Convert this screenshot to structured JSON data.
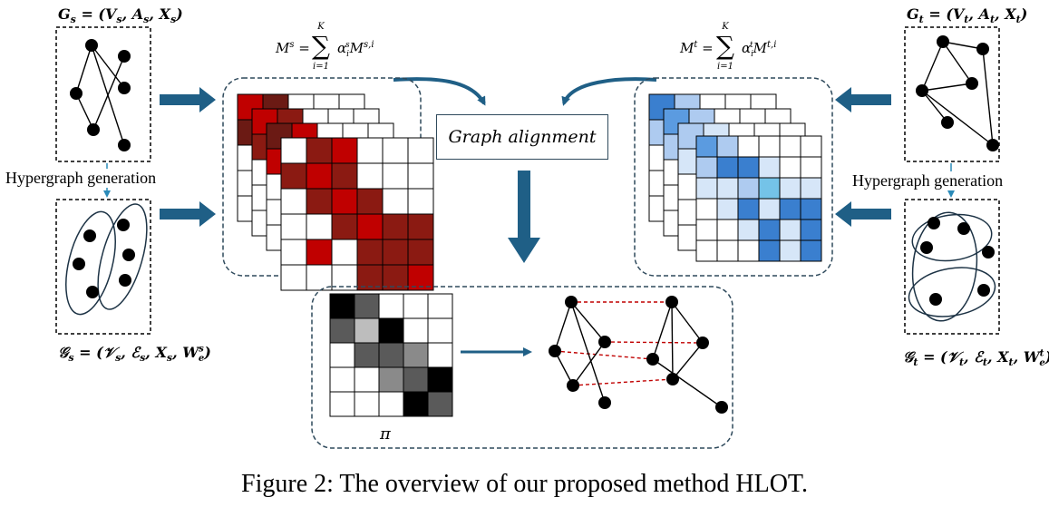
{
  "caption": "Figure 2: The overview of our proposed method HLOT.",
  "source_graph_label": "G_s = (V_s, A_s, X_s)",
  "target_graph_label": "G_t = (V_t, A_t, X_t)",
  "source_hypergraph_label": "𝒢_s = (𝒱_s, ℰ_s, X_s, W_e^s)",
  "target_hypergraph_label": "𝒢_t = (𝒱_t, ℰ_t, X_t, W_e^t)",
  "hypergraph_generation_left": "Hypergraph generation",
  "hypergraph_generation_right": "Hypergraph generation",
  "source_matrix_formula": "M^s = Σ_{i=1}^{K} α_i^s M^{s,i}",
  "target_matrix_formula": "M^t = Σ_{i=1}^{K} α_i^t M^{t,i}",
  "graph_alignment": "Graph alignment",
  "pi_label": "π",
  "colors": {
    "arrow": "#1f5f86",
    "box_border": "#2f4a5c",
    "red_dark": "#6b1a14",
    "red_mid": "#8b1a12",
    "red_bright": "#c00000",
    "blue_dark": "#3a7fcf",
    "blue_mid": "#5b9be0",
    "blue_light": "#aecbf0",
    "blue_pale": "#d6e6f8",
    "blue_cyan": "#74c3e8",
    "match_line": "#c00000"
  }
}
